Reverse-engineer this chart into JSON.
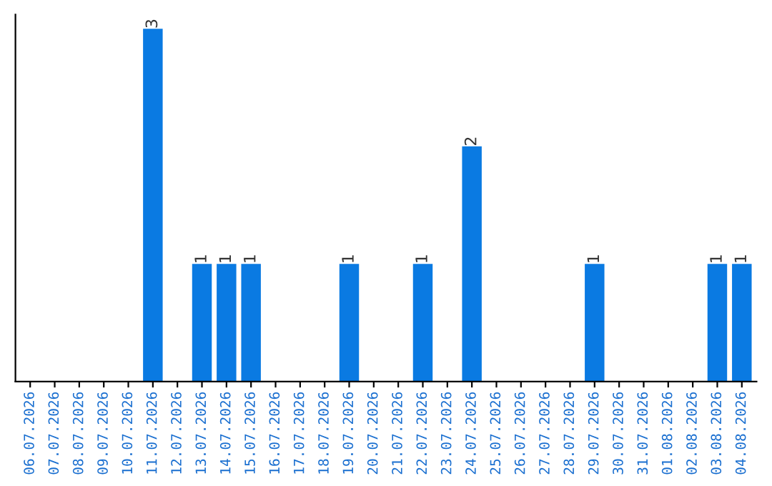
{
  "chart_data": {
    "type": "bar",
    "categories": [
      "06.07.2026",
      "07.07.2026",
      "08.07.2026",
      "09.07.2026",
      "10.07.2026",
      "11.07.2026",
      "12.07.2026",
      "13.07.2026",
      "14.07.2026",
      "15.07.2026",
      "16.07.2026",
      "17.07.2026",
      "18.07.2026",
      "19.07.2026",
      "20.07.2026",
      "21.07.2026",
      "22.07.2026",
      "23.07.2026",
      "24.07.2026",
      "25.07.2026",
      "26.07.2026",
      "27.07.2026",
      "28.07.2026",
      "29.07.2026",
      "30.07.2026",
      "31.07.2026",
      "01.08.2026",
      "02.08.2026",
      "03.08.2026",
      "04.08.2026"
    ],
    "values": [
      0,
      0,
      0,
      0,
      0,
      3,
      0,
      1,
      1,
      1,
      0,
      0,
      0,
      1,
      0,
      0,
      1,
      0,
      2,
      0,
      0,
      0,
      0,
      1,
      0,
      0,
      0,
      0,
      1,
      1
    ],
    "value_labels": [
      null,
      null,
      null,
      null,
      null,
      "3",
      null,
      "1",
      "1",
      "1",
      null,
      null,
      null,
      "1",
      null,
      null,
      "1",
      null,
      "2",
      null,
      null,
      null,
      null,
      "1",
      null,
      null,
      null,
      null,
      "1",
      "1"
    ],
    "color": "#0a7ae2",
    "tick_labels": "x",
    "grid": false,
    "legend": false
  }
}
